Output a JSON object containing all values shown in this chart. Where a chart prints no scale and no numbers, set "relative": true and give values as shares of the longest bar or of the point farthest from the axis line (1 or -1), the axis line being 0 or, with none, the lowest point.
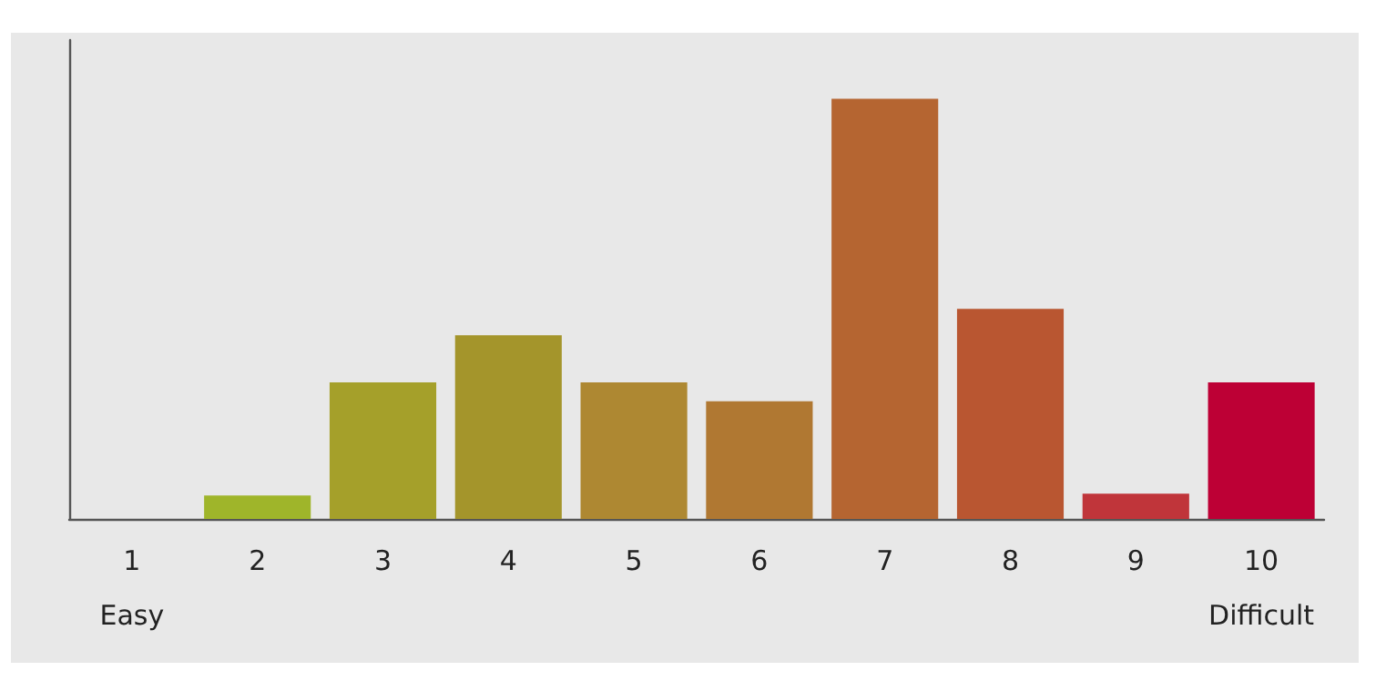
{
  "chart_data": {
    "type": "bar",
    "relative": true,
    "categories": [
      "1",
      "2",
      "3",
      "4",
      "5",
      "6",
      "7",
      "8",
      "9",
      "10"
    ],
    "values": [
      0,
      0.056,
      0.325,
      0.437,
      0.325,
      0.28,
      1,
      0.5,
      0.06,
      0.325
    ],
    "colors": [
      "#9fb52a",
      "#9fb52a",
      "#a5a02a",
      "#a4952b",
      "#ae8832",
      "#b07832",
      "#b56531",
      "#b95631",
      "#c0353a",
      "#bd0035"
    ],
    "annotations": [
      "Easy",
      "Difficult"
    ]
  }
}
